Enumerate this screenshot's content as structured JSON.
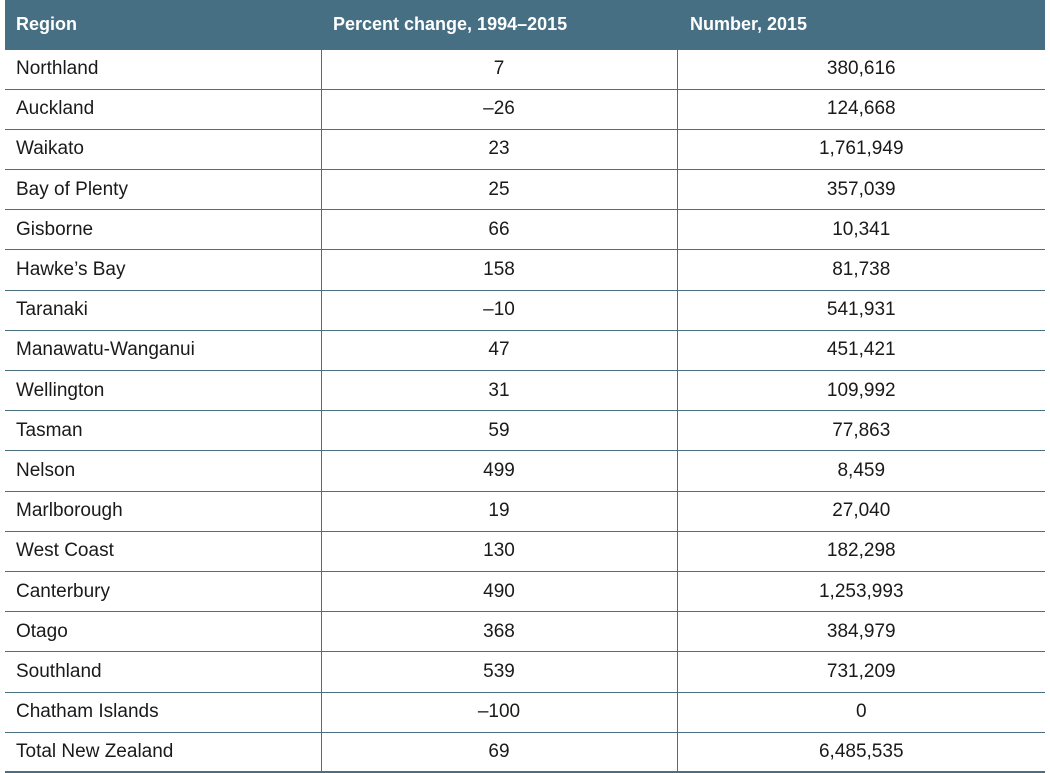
{
  "table": {
    "headers": [
      "Region",
      "Percent change, 1994–2015",
      "Number, 2015"
    ],
    "rows": [
      {
        "region": "Northland",
        "pct": "7",
        "num": "380,616"
      },
      {
        "region": "Auckland",
        "pct": "–26",
        "num": "124,668"
      },
      {
        "region": "Waikato",
        "pct": "23",
        "num": "1,761,949"
      },
      {
        "region": "Bay of Plenty",
        "pct": "25",
        "num": "357,039"
      },
      {
        "region": "Gisborne",
        "pct": "66",
        "num": "10,341"
      },
      {
        "region": "Hawke’s Bay",
        "pct": "158",
        "num": "81,738"
      },
      {
        "region": "Taranaki",
        "pct": "–10",
        "num": "541,931"
      },
      {
        "region": "Manawatu-Wanganui",
        "pct": "47",
        "num": "451,421"
      },
      {
        "region": "Wellington",
        "pct": "31",
        "num": "109,992"
      },
      {
        "region": "Tasman",
        "pct": "59",
        "num": "77,863"
      },
      {
        "region": "Nelson",
        "pct": "499",
        "num": "8,459"
      },
      {
        "region": "Marlborough",
        "pct": "19",
        "num": "27,040"
      },
      {
        "region": "West Coast",
        "pct": "130",
        "num": "182,298"
      },
      {
        "region": "Canterbury",
        "pct": "490",
        "num": "1,253,993"
      },
      {
        "region": "Otago",
        "pct": "368",
        "num": "384,979"
      },
      {
        "region": "Southland",
        "pct": "539",
        "num": "731,209"
      },
      {
        "region": "Chatham Islands",
        "pct": "–100",
        "num": "0"
      },
      {
        "region": "Total New Zealand",
        "pct": "69",
        "num": "6,485,535"
      }
    ]
  },
  "colors": {
    "header_background": "#466f84",
    "header_text": "#ffffff",
    "rule": "#4a6f82"
  }
}
